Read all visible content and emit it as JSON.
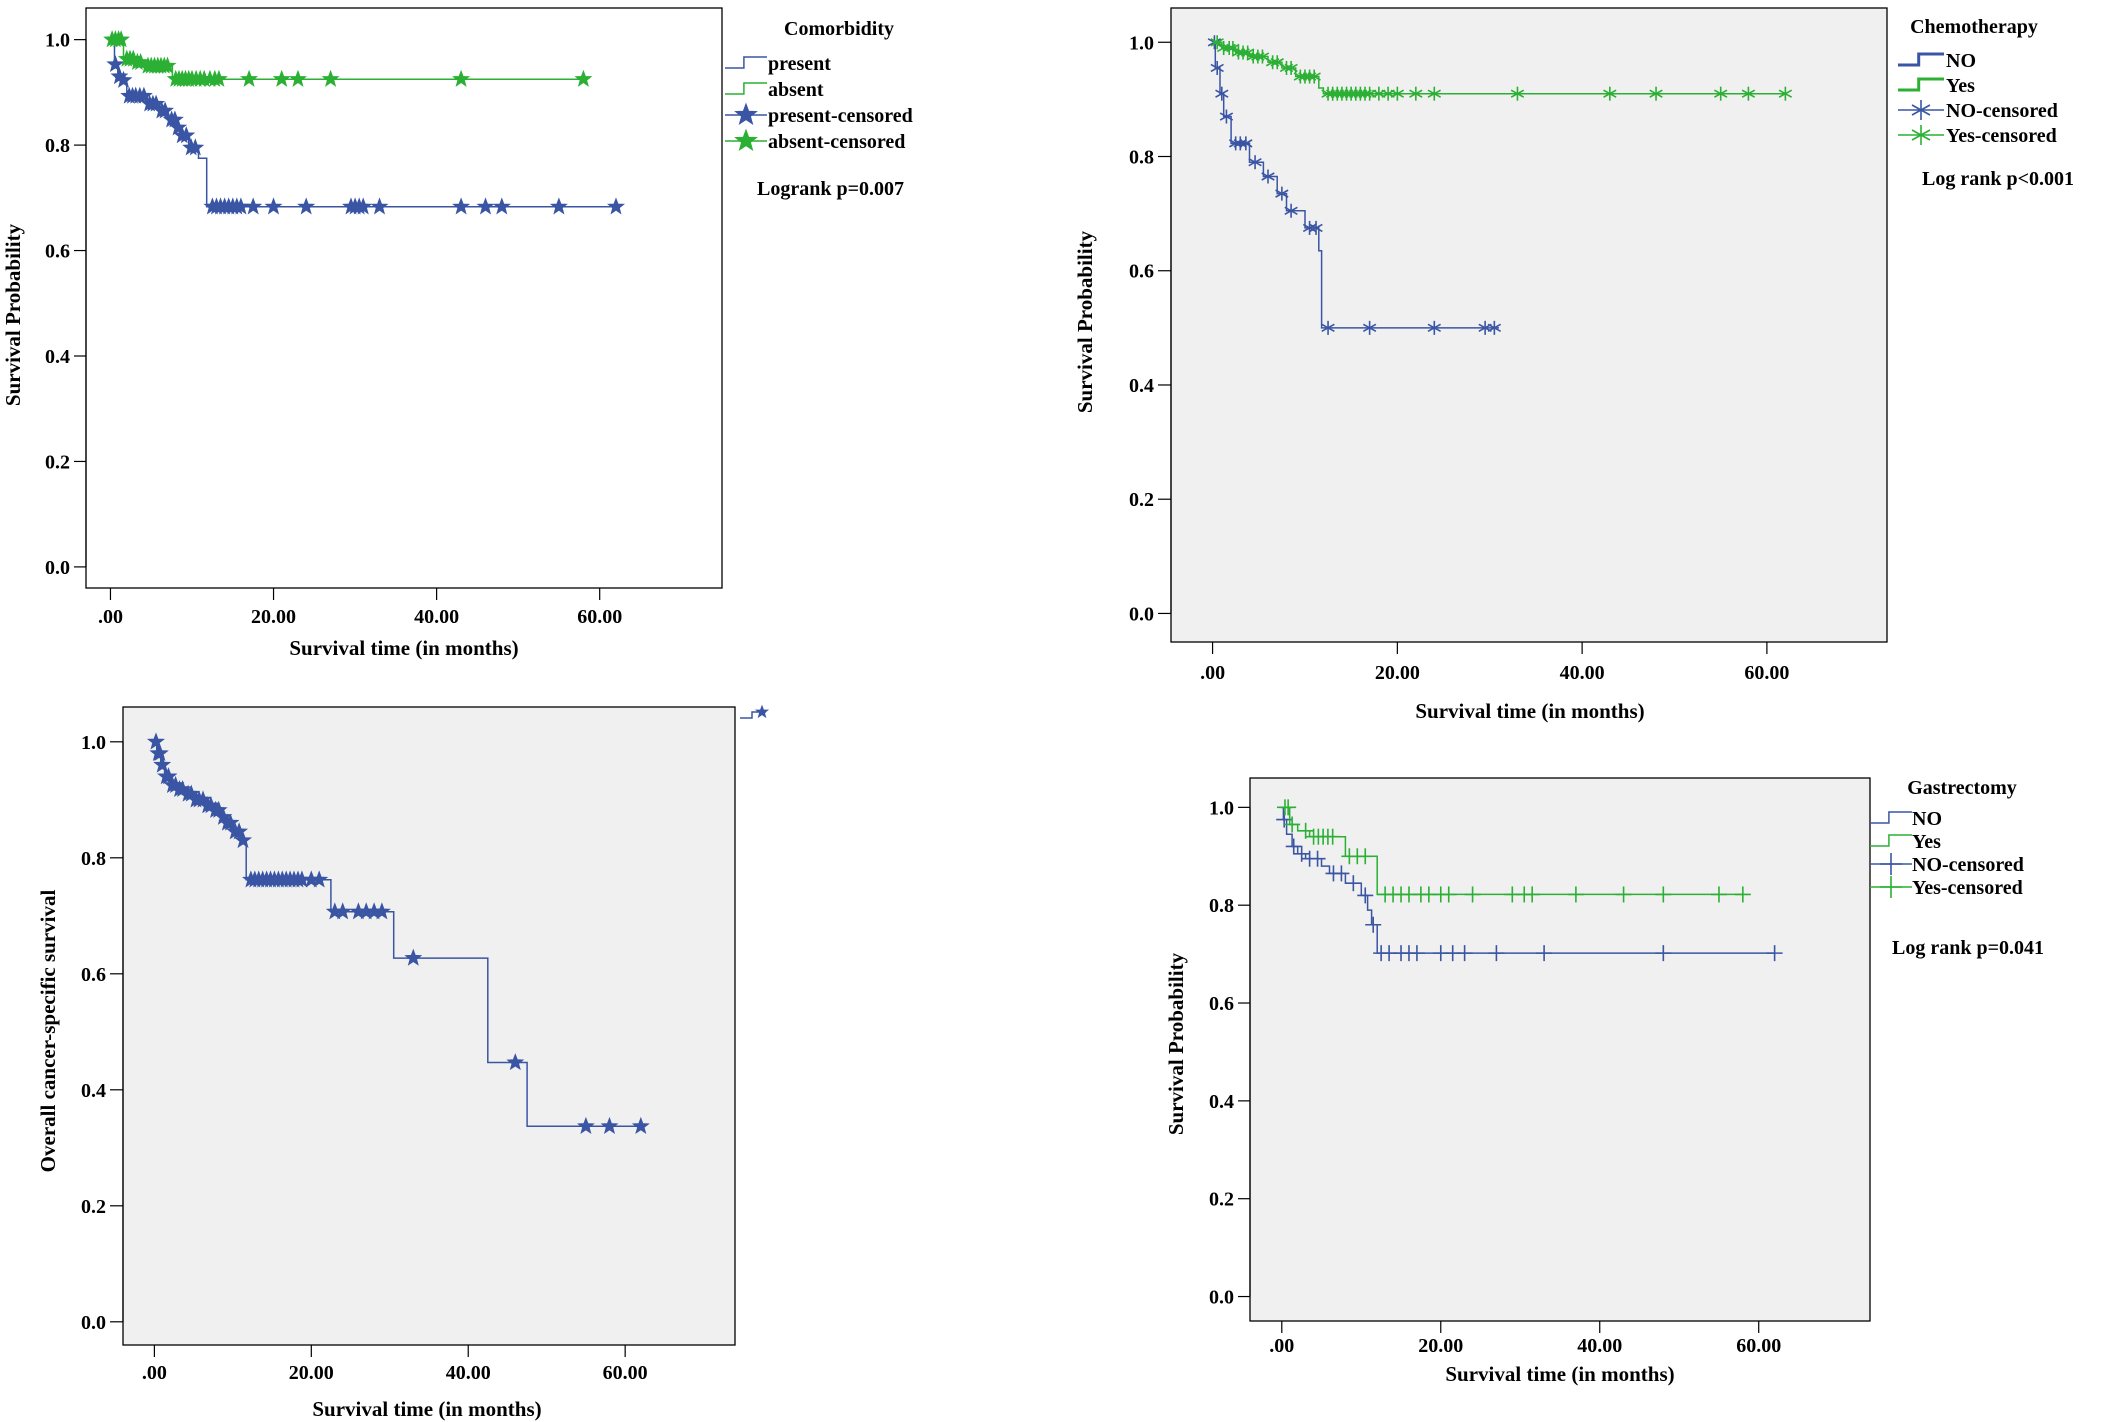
{
  "chart_data": [
    {
      "type": "line",
      "subtype": "kaplan-meier",
      "title": "",
      "xlabel": "Survival time (in months)",
      "ylabel": "Survival Probability",
      "xlim": [
        -3,
        75
      ],
      "ylim": [
        -0.04,
        1.06
      ],
      "xticks": [
        0,
        20,
        40,
        60
      ],
      "xtick_labels": [
        ".00",
        "20.00",
        "40.00",
        "60.00"
      ],
      "yticks": [
        0,
        0.2,
        0.4,
        0.6,
        0.8,
        1.0
      ],
      "ytick_labels": [
        "0.0",
        "0.2",
        "0.4",
        "0.6",
        "0.8",
        "1.0"
      ],
      "background": "#ffffff",
      "legend_position": "right",
      "legend_title": "Comorbidity",
      "legend_items": [
        "present",
        "absent",
        "present-censored",
        "absent-censored"
      ],
      "annotation": "Logrank p=0.007",
      "series": [
        {
          "name": "present",
          "color": "#3a55a4",
          "marker": "star",
          "steps": [
            [
              0,
              1.0
            ],
            [
              0.5,
              0.953
            ],
            [
              0.9,
              0.93
            ],
            [
              1.4,
              0.923
            ],
            [
              2.0,
              0.893
            ],
            [
              4.5,
              0.878
            ],
            [
              6.0,
              0.865
            ],
            [
              7.0,
              0.848
            ],
            [
              8.0,
              0.833
            ],
            [
              8.5,
              0.818
            ],
            [
              9.6,
              0.795
            ],
            [
              10.8,
              0.775
            ],
            [
              11.8,
              0.683
            ]
          ],
          "end": 62,
          "censored": [
            0.6,
            1.1,
            1.6,
            2.3,
            2.7,
            3.1,
            3.6,
            4.1,
            4.8,
            5.2,
            5.6,
            6.3,
            6.7,
            7.5,
            7.9,
            8.3,
            8.8,
            9.3,
            9.9,
            10.4,
            12.5,
            13,
            13.5,
            14,
            14.5,
            15,
            15.5,
            16,
            17.5,
            20,
            24,
            29.5,
            30,
            30.5,
            31,
            33,
            43,
            46,
            48,
            55,
            62
          ]
        },
        {
          "name": "absent",
          "color": "#2bb034",
          "marker": "star",
          "steps": [
            [
              0,
              1.0
            ],
            [
              1.6,
              0.963
            ],
            [
              3.0,
              0.957
            ],
            [
              4.2,
              0.95
            ],
            [
              7.6,
              0.925
            ]
          ],
          "end": 58,
          "censored": [
            0.2,
            0.6,
            1.0,
            1.3,
            2.0,
            2.4,
            2.8,
            3.3,
            3.7,
            4.6,
            5.0,
            5.4,
            5.8,
            6.2,
            6.6,
            7.0,
            8.0,
            8.4,
            8.8,
            9.2,
            9.6,
            10,
            10.5,
            11,
            11.5,
            12.2,
            12.8,
            13.3,
            17,
            21,
            23,
            27,
            43,
            58
          ]
        }
      ]
    },
    {
      "type": "line",
      "subtype": "kaplan-meier",
      "title": "",
      "xlabel": "Survival time (in months)",
      "ylabel": "Survival Probability",
      "xlim": [
        -4.5,
        73
      ],
      "ylim": [
        -0.05,
        1.06
      ],
      "xticks": [
        0,
        20,
        40,
        60
      ],
      "xtick_labels": [
        ".00",
        "20.00",
        "40.00",
        "60.00"
      ],
      "yticks": [
        0,
        0.2,
        0.4,
        0.6,
        0.8,
        1.0
      ],
      "ytick_labels": [
        "0.0",
        "0.2",
        "0.4",
        "0.6",
        "0.8",
        "1.0"
      ],
      "background": "#f0f0f0",
      "legend_position": "right",
      "legend_title": "Chemotherapy",
      "legend_items": [
        "NO",
        "Yes",
        "NO-censored",
        "Yes-censored"
      ],
      "annotation": "Log rank p<0.001",
      "series": [
        {
          "name": "NO",
          "color": "#3a55a4",
          "marker": "asterisk",
          "steps": [
            [
              0,
              1.0
            ],
            [
              0.3,
              0.955
            ],
            [
              0.8,
              0.91
            ],
            [
              1.2,
              0.87
            ],
            [
              2.0,
              0.823
            ],
            [
              4.0,
              0.79
            ],
            [
              5.5,
              0.765
            ],
            [
              7.0,
              0.735
            ],
            [
              8.0,
              0.705
            ],
            [
              10.0,
              0.675
            ],
            [
              11.5,
              0.635
            ],
            [
              11.8,
              0.5
            ]
          ],
          "end": 31,
          "censored": [
            0.2,
            0.5,
            1.0,
            1.5,
            2.5,
            3.0,
            3.6,
            4.6,
            6.0,
            7.5,
            8.5,
            10.5,
            11.2,
            12.5,
            17,
            24,
            29.5,
            30.5
          ]
        },
        {
          "name": "Yes",
          "color": "#2bb034",
          "marker": "asterisk",
          "steps": [
            [
              0,
              1.0
            ],
            [
              1.0,
              0.99
            ],
            [
              2.5,
              0.982
            ],
            [
              4.0,
              0.975
            ],
            [
              6.0,
              0.965
            ],
            [
              7.5,
              0.955
            ],
            [
              9.0,
              0.94
            ],
            [
              11.5,
              0.92
            ],
            [
              12.0,
              0.91
            ]
          ],
          "end": 62,
          "censored": [
            0.5,
            1.2,
            1.8,
            2.2,
            2.8,
            3.3,
            3.8,
            4.4,
            4.9,
            5.4,
            6.5,
            7.0,
            8.0,
            8.5,
            9.5,
            10,
            10.5,
            11,
            12.5,
            13,
            13.5,
            14,
            14.5,
            15,
            15.5,
            16,
            16.5,
            17,
            18,
            19,
            20,
            22,
            24,
            33,
            43,
            48,
            55,
            58,
            62
          ]
        }
      ]
    },
    {
      "type": "line",
      "subtype": "kaplan-meier",
      "title": "",
      "xlabel": "Survival time (in months)",
      "ylabel": "Overall cancer-specific survival",
      "xlim": [
        -4,
        74
      ],
      "ylim": [
        -0.04,
        1.06
      ],
      "xticks": [
        0,
        20,
        40,
        60
      ],
      "xtick_labels": [
        ".00",
        "20.00",
        "40.00",
        "60.00"
      ],
      "yticks": [
        0,
        0.2,
        0.4,
        0.6,
        0.8,
        1.0
      ],
      "ytick_labels": [
        "0.0",
        "0.2",
        "0.4",
        "0.6",
        "0.8",
        "1.0"
      ],
      "background": "#f0f0f0",
      "legend_position": "top-right",
      "legend_title": "",
      "legend_items": [],
      "annotation": "",
      "series": [
        {
          "name": "",
          "color": "#3a55a4",
          "marker": "star",
          "steps": [
            [
              0,
              1.0
            ],
            [
              0.3,
              0.98
            ],
            [
              0.8,
              0.96
            ],
            [
              1.3,
              0.94
            ],
            [
              2.0,
              0.925
            ],
            [
              3.0,
              0.918
            ],
            [
              4.0,
              0.91
            ],
            [
              5.0,
              0.9
            ],
            [
              6.5,
              0.89
            ],
            [
              7.5,
              0.882
            ],
            [
              8.5,
              0.87
            ],
            [
              9.0,
              0.86
            ],
            [
              10.0,
              0.845
            ],
            [
              11.0,
              0.83
            ],
            [
              11.7,
              0.762
            ],
            [
              22.5,
              0.707
            ],
            [
              30.5,
              0.627
            ],
            [
              42.5,
              0.447
            ],
            [
              47.5,
              0.337
            ]
          ],
          "end": 62,
          "censored": [
            0.2,
            0.5,
            0.7,
            1.0,
            1.5,
            1.8,
            2.3,
            2.7,
            3.2,
            3.6,
            4.3,
            4.7,
            5.3,
            5.7,
            6.2,
            6.8,
            7.2,
            7.8,
            8.2,
            8.8,
            9.3,
            9.7,
            10.3,
            10.8,
            11.3,
            12.3,
            12.8,
            13.3,
            13.8,
            14.3,
            14.8,
            15.3,
            15.8,
            16.3,
            16.8,
            17.3,
            17.8,
            18.3,
            18.8,
            20,
            21,
            23,
            24,
            26,
            27,
            28,
            29,
            33,
            46,
            55,
            58,
            62
          ]
        }
      ]
    },
    {
      "type": "line",
      "subtype": "kaplan-meier",
      "title": "",
      "xlabel": "Survival time (in months)",
      "ylabel": "Survival Probability",
      "xlim": [
        -4,
        74
      ],
      "ylim": [
        -0.05,
        1.06
      ],
      "xticks": [
        0,
        20,
        40,
        60
      ],
      "xtick_labels": [
        ".00",
        "20.00",
        "40.00",
        "60.00"
      ],
      "yticks": [
        0,
        0.2,
        0.4,
        0.6,
        0.8,
        1.0
      ],
      "ytick_labels": [
        "0.0",
        "0.2",
        "0.4",
        "0.6",
        "0.8",
        "1.0"
      ],
      "background": "#f0f0f0",
      "legend_position": "right",
      "legend_title": "Gastrectomy",
      "legend_items": [
        "NO",
        "Yes",
        "NO-censored",
        "Yes-censored"
      ],
      "annotation": "Log rank p=0.041",
      "series": [
        {
          "name": "NO",
          "color": "#3a55a4",
          "marker": "plus",
          "steps": [
            [
              0,
              1.0
            ],
            [
              0.2,
              0.975
            ],
            [
              0.6,
              0.945
            ],
            [
              1.3,
              0.92
            ],
            [
              2.0,
              0.905
            ],
            [
              3.0,
              0.895
            ],
            [
              5.0,
              0.88
            ],
            [
              6.0,
              0.865
            ],
            [
              8.0,
              0.845
            ],
            [
              10.0,
              0.82
            ],
            [
              10.8,
              0.79
            ],
            [
              11.3,
              0.76
            ],
            [
              12.0,
              0.702
            ]
          ],
          "end": 62,
          "censored": [
            0.3,
            1.5,
            2.5,
            3.5,
            4.5,
            6.5,
            7.5,
            9.0,
            10.5,
            11.5,
            12.5,
            13.5,
            15,
            16,
            17,
            20,
            21.5,
            23,
            27,
            33,
            48,
            62
          ]
        },
        {
          "name": "Yes",
          "color": "#2bb034",
          "marker": "plus",
          "steps": [
            [
              0,
              1.0
            ],
            [
              1.0,
              0.965
            ],
            [
              2.0,
              0.952
            ],
            [
              3.5,
              0.94
            ],
            [
              8.0,
              0.9
            ],
            [
              12.0,
              0.822
            ]
          ],
          "end": 58,
          "censored": [
            0.4,
            0.8,
            1.3,
            3.0,
            4.0,
            4.6,
            5.2,
            5.8,
            6.4,
            8.5,
            9.5,
            10.5,
            13,
            14,
            15,
            16,
            17.5,
            18.5,
            20,
            21,
            24,
            29,
            30.5,
            31.5,
            37,
            43,
            48,
            55,
            58
          ]
        }
      ]
    }
  ]
}
